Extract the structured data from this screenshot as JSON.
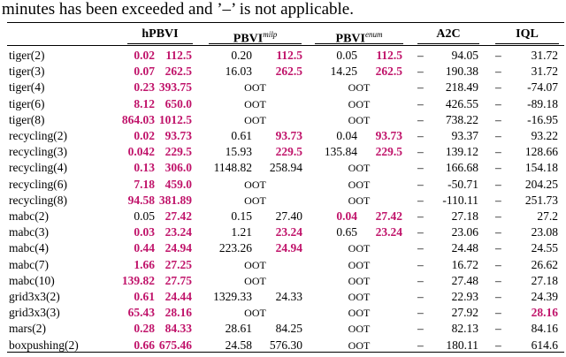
{
  "caption": "minutes has been exceeded and ’–’ is not applicable.",
  "table": {
    "highlight_color": "#c0136a",
    "header": [
      {
        "text": "hPBVI"
      },
      {
        "text": "PBVI",
        "sup": "milp"
      },
      {
        "text": "PBVI",
        "sup": "enum"
      },
      {
        "text": "A2C"
      },
      {
        "text": "IQL"
      }
    ],
    "rows": [
      {
        "name": "tiger(2)",
        "cells": [
          "0.02",
          "112.5",
          "0.20",
          "112.5",
          "0.05",
          "112.5",
          "–",
          "94.05",
          "–",
          "31.72"
        ],
        "highlight": [
          0,
          1,
          3,
          5
        ]
      },
      {
        "name": "tiger(3)",
        "cells": [
          "0.07",
          "262.5",
          "16.03",
          "262.5",
          "14.25",
          "262.5",
          "–",
          "190.38",
          "–",
          "31.72"
        ],
        "highlight": [
          0,
          1,
          3,
          5
        ]
      },
      {
        "name": "tiger(4)",
        "cells": [
          "0.23",
          "393.75",
          "OOT",
          "OOT",
          "–",
          "218.49",
          "–",
          "-74.07"
        ],
        "highlight": [
          0,
          1
        ]
      },
      {
        "name": "tiger(6)",
        "cells": [
          "8.12",
          "650.0",
          "OOT",
          "OOT",
          "–",
          "426.55",
          "–",
          "-89.18"
        ],
        "highlight": [
          0,
          1
        ]
      },
      {
        "name": "tiger(8)",
        "cells": [
          "864.03",
          "1012.5",
          "OOT",
          "OOT",
          "–",
          "738.22",
          "–",
          "-16.95"
        ],
        "highlight": [
          0,
          1
        ]
      },
      {
        "name": "recycling(2)",
        "cells": [
          "0.02",
          "93.73",
          "0.61",
          "93.73",
          "0.04",
          "93.73",
          "–",
          "93.37",
          "–",
          "93.22"
        ],
        "highlight": [
          0,
          1,
          3,
          5
        ]
      },
      {
        "name": "recycling(3)",
        "cells": [
          "0.042",
          "229.5",
          "15.93",
          "229.5",
          "135.84",
          "229.5",
          "–",
          "139.12",
          "–",
          "128.66"
        ],
        "highlight": [
          0,
          1,
          3,
          5
        ]
      },
      {
        "name": "recycling(4)",
        "cells": [
          "0.13",
          "306.0",
          "1148.82",
          "258.94",
          "OOT",
          "–",
          "166.68",
          "–",
          "154.18"
        ],
        "highlight": [
          0,
          1
        ]
      },
      {
        "name": "recycling(6)",
        "cells": [
          "7.18",
          "459.0",
          "OOT",
          "OOT",
          "–",
          "-50.71",
          "–",
          "204.25"
        ],
        "highlight": [
          0,
          1
        ]
      },
      {
        "name": "recycling(8)",
        "cells": [
          "94.58",
          "381.89",
          "OOT",
          "OOT",
          "–",
          "-110.11",
          "–",
          "251.73"
        ],
        "highlight": [
          0,
          1
        ]
      },
      {
        "name": "mabc(2)",
        "cells": [
          "0.05",
          "27.42",
          "0.15",
          "27.40",
          "0.04",
          "27.42",
          "–",
          "27.18",
          "–",
          "27.2"
        ],
        "highlight": [
          1,
          4,
          5
        ]
      },
      {
        "name": "mabc(3)",
        "cells": [
          "0.03",
          "23.24",
          "1.21",
          "23.24",
          "0.65",
          "23.24",
          "–",
          "23.06",
          "–",
          "23.08"
        ],
        "highlight": [
          0,
          1,
          3,
          5
        ]
      },
      {
        "name": "mabc(4)",
        "cells": [
          "0.44",
          "24.94",
          "223.26",
          "24.94",
          "OOT",
          "–",
          "24.48",
          "–",
          "24.55"
        ],
        "highlight": [
          0,
          1,
          3
        ]
      },
      {
        "name": "mabc(7)",
        "cells": [
          "1.66",
          "27.25",
          "OOT",
          "OOT",
          "–",
          "16.72",
          "–",
          "26.62"
        ],
        "highlight": [
          0,
          1
        ]
      },
      {
        "name": "mabc(10)",
        "cells": [
          "139.82",
          "27.75",
          "OOT",
          "OOT",
          "–",
          "27.48",
          "–",
          "27.18"
        ],
        "highlight": [
          0,
          1
        ]
      },
      {
        "name": "grid3x3(2)",
        "cells": [
          "0.61",
          "24.44",
          "1329.33",
          "24.33",
          "OOT",
          "–",
          "22.93",
          "–",
          "24.39"
        ],
        "highlight": [
          0,
          1
        ]
      },
      {
        "name": "grid3x3(3)",
        "cells": [
          "65.43",
          "28.16",
          "OOT",
          "OOT",
          "–",
          "27.92",
          "–",
          "28.16"
        ],
        "highlight": [
          0,
          1,
          7
        ]
      },
      {
        "name": "mars(2)",
        "cells": [
          "0.28",
          "84.33",
          "28.61",
          "84.25",
          "OOT",
          "–",
          "82.13",
          "–",
          "84.16"
        ],
        "highlight": [
          0,
          1
        ]
      },
      {
        "name": "boxpushing(2)",
        "cells": [
          "0.66",
          "675.46",
          "24.58",
          "576.30",
          "OOT",
          "–",
          "180.11",
          "–",
          "614.6"
        ],
        "highlight": [
          0,
          1
        ]
      }
    ]
  }
}
